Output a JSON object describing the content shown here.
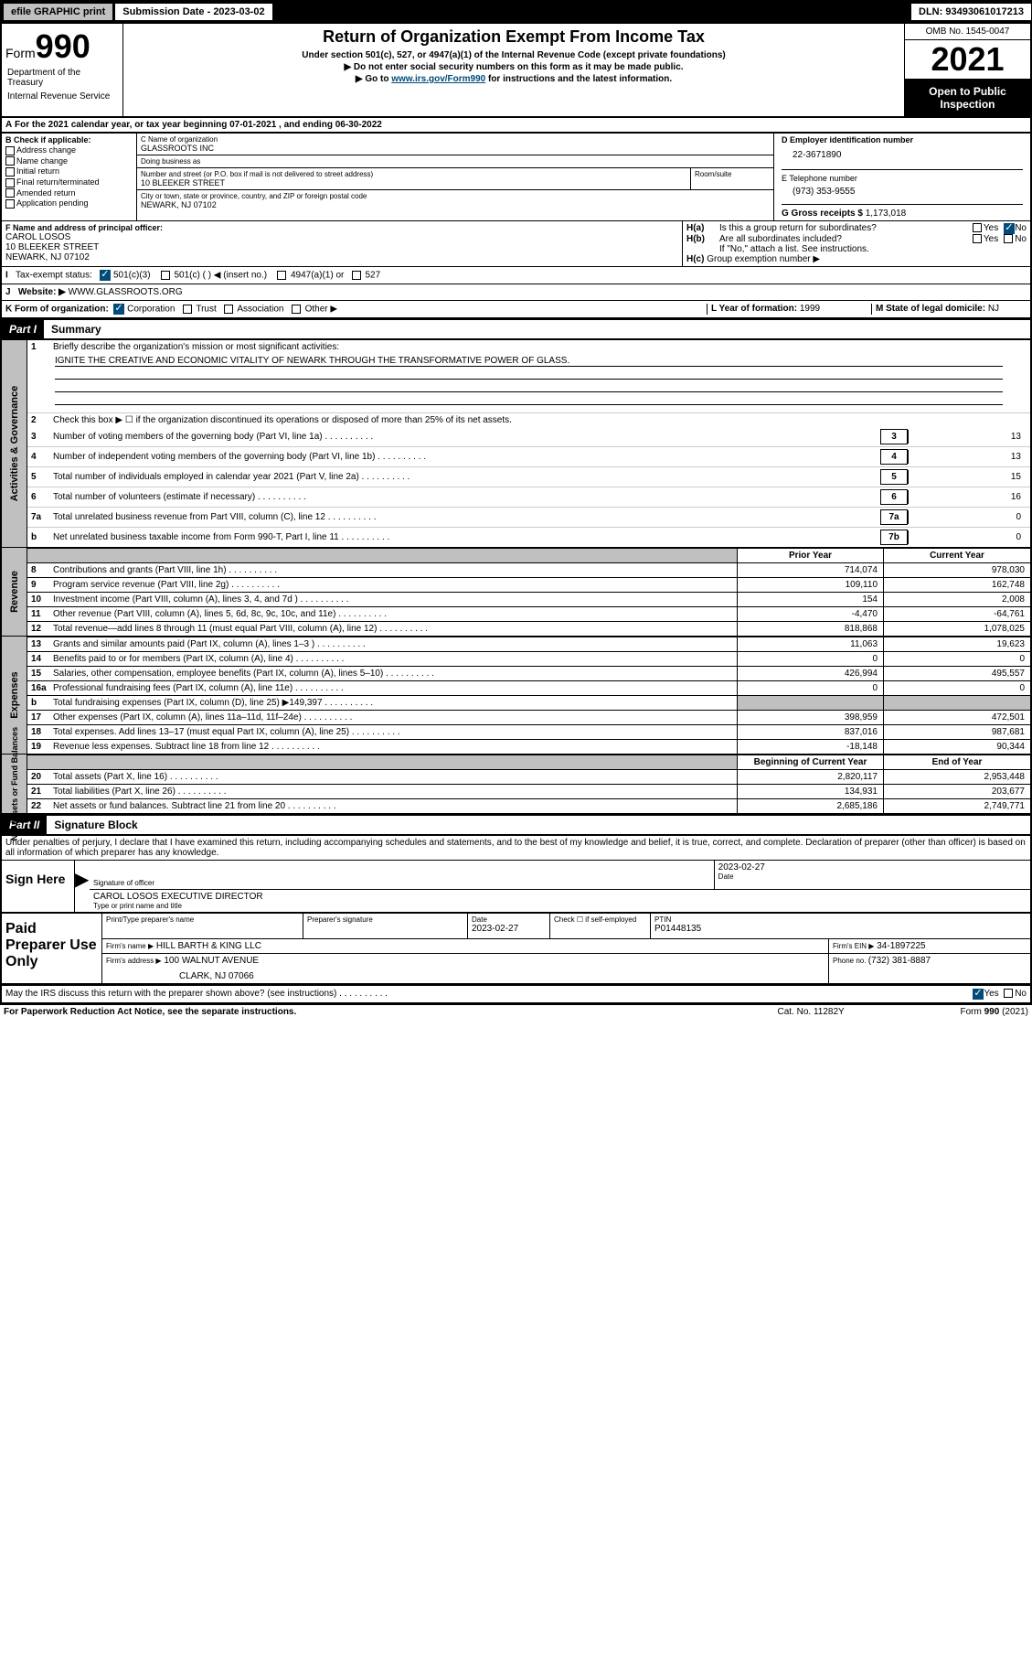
{
  "topbar": {
    "efile": "efile GRAPHIC print",
    "submission_label": "Submission Date - 2023-03-02",
    "dln": "DLN: 93493061017213"
  },
  "header": {
    "form_label": "Form",
    "form_num": "990",
    "title": "Return of Organization Exempt From Income Tax",
    "sub1": "Under section 501(c), 527, or 4947(a)(1) of the Internal Revenue Code (except private foundations)",
    "sub2": "▶ Do not enter social security numbers on this form as it may be made public.",
    "sub3_pre": "▶ Go to ",
    "sub3_link": "www.irs.gov/Form990",
    "sub3_post": " for instructions and the latest information.",
    "omb": "OMB No. 1545-0047",
    "year": "2021",
    "open": "Open to Public Inspection",
    "dept": "Department of the Treasury",
    "irs": "Internal Revenue Service"
  },
  "rowA": "For the 2021 calendar year, or tax year beginning 07-01-2021  , and ending 06-30-2022",
  "sectionB": {
    "label": "B Check if applicable:",
    "opts": [
      "Address change",
      "Name change",
      "Initial return",
      "Final return/terminated",
      "Amended return",
      "Application pending"
    ]
  },
  "sectionC": {
    "name_label": "C Name of organization",
    "name": "GLASSROOTS INC",
    "dba_label": "Doing business as",
    "dba": "",
    "addr_label": "Number and street (or P.O. box if mail is not delivered to street address)",
    "room_label": "Room/suite",
    "addr": "10 BLEEKER STREET",
    "city_label": "City or town, state or province, country, and ZIP or foreign postal code",
    "city": "NEWARK, NJ  07102"
  },
  "sectionD": {
    "label": "D Employer identification number",
    "val": "22-3671890"
  },
  "sectionE": {
    "label": "E Telephone number",
    "val": "(973) 353-9555"
  },
  "sectionG": {
    "label": "G Gross receipts $ ",
    "val": "1,173,018"
  },
  "sectionF": {
    "label": "F Name and address of principal officer:",
    "name": "CAROL LOSOS",
    "addr1": "10 BLEEKER STREET",
    "addr2": "NEWARK, NJ  07102"
  },
  "sectionH": {
    "a": "Is this a group return for subordinates?",
    "b": "Are all subordinates included?",
    "b_note": "If \"No,\" attach a list. See instructions.",
    "c": "Group exemption number ▶"
  },
  "taxExempt": {
    "label": "Tax-exempt status:",
    "opt1": "501(c)(3)",
    "opt2": "501(c) (  ) ◀ (insert no.)",
    "opt3": "4947(a)(1) or",
    "opt4": "527"
  },
  "website": {
    "label": "Website: ▶",
    "val": "WWW.GLASSROOTS.ORG"
  },
  "orgForm": {
    "label": "K Form of organization:",
    "opts": [
      "Corporation",
      "Trust",
      "Association",
      "Other ▶"
    ]
  },
  "yearFormation": {
    "label": "L Year of formation: ",
    "val": "1999"
  },
  "domicile": {
    "label": "M State of legal domicile: ",
    "val": "NJ"
  },
  "part1": {
    "label": "Part I",
    "title": "Summary"
  },
  "summary": {
    "q1": "Briefly describe the organization's mission or most significant activities:",
    "mission": "IGNITE THE CREATIVE AND ECONOMIC VITALITY OF NEWARK THROUGH THE TRANSFORMATIVE POWER OF GLASS.",
    "q2": "Check this box ▶ ☐ if the organization discontinued its operations or disposed of more than 25% of its net assets.",
    "lines": [
      {
        "n": "3",
        "t": "Number of voting members of the governing body (Part VI, line 1a)",
        "box": "3",
        "v": "13"
      },
      {
        "n": "4",
        "t": "Number of independent voting members of the governing body (Part VI, line 1b)",
        "box": "4",
        "v": "13"
      },
      {
        "n": "5",
        "t": "Total number of individuals employed in calendar year 2021 (Part V, line 2a)",
        "box": "5",
        "v": "15"
      },
      {
        "n": "6",
        "t": "Total number of volunteers (estimate if necessary)",
        "box": "6",
        "v": "16"
      },
      {
        "n": "7a",
        "t": "Total unrelated business revenue from Part VIII, column (C), line 12",
        "box": "7a",
        "v": "0"
      },
      {
        "n": "b",
        "t": "Net unrelated business taxable income from Form 990-T, Part I, line 11",
        "box": "7b",
        "v": "0"
      }
    ],
    "prior_label": "Prior Year",
    "current_label": "Current Year",
    "beg_label": "Beginning of Current Year",
    "end_label": "End of Year"
  },
  "revenue": [
    {
      "n": "8",
      "t": "Contributions and grants (Part VIII, line 1h)",
      "p": "714,074",
      "c": "978,030"
    },
    {
      "n": "9",
      "t": "Program service revenue (Part VIII, line 2g)",
      "p": "109,110",
      "c": "162,748"
    },
    {
      "n": "10",
      "t": "Investment income (Part VIII, column (A), lines 3, 4, and 7d )",
      "p": "154",
      "c": "2,008"
    },
    {
      "n": "11",
      "t": "Other revenue (Part VIII, column (A), lines 5, 6d, 8c, 9c, 10c, and 11e)",
      "p": "-4,470",
      "c": "-64,761"
    },
    {
      "n": "12",
      "t": "Total revenue—add lines 8 through 11 (must equal Part VIII, column (A), line 12)",
      "p": "818,868",
      "c": "1,078,025"
    }
  ],
  "expenses": [
    {
      "n": "13",
      "t": "Grants and similar amounts paid (Part IX, column (A), lines 1–3 )",
      "p": "11,063",
      "c": "19,623"
    },
    {
      "n": "14",
      "t": "Benefits paid to or for members (Part IX, column (A), line 4)",
      "p": "0",
      "c": "0"
    },
    {
      "n": "15",
      "t": "Salaries, other compensation, employee benefits (Part IX, column (A), lines 5–10)",
      "p": "426,994",
      "c": "495,557"
    },
    {
      "n": "16a",
      "t": "Professional fundraising fees (Part IX, column (A), line 11e)",
      "p": "0",
      "c": "0"
    },
    {
      "n": "b",
      "t": "Total fundraising expenses (Part IX, column (D), line 25) ▶149,397",
      "p": "",
      "c": "",
      "shaded": true
    },
    {
      "n": "17",
      "t": "Other expenses (Part IX, column (A), lines 11a–11d, 11f–24e)",
      "p": "398,959",
      "c": "472,501"
    },
    {
      "n": "18",
      "t": "Total expenses. Add lines 13–17 (must equal Part IX, column (A), line 25)",
      "p": "837,016",
      "c": "987,681"
    },
    {
      "n": "19",
      "t": "Revenue less expenses. Subtract line 18 from line 12",
      "p": "-18,148",
      "c": "90,344"
    }
  ],
  "netassets": [
    {
      "n": "20",
      "t": "Total assets (Part X, line 16)",
      "p": "2,820,117",
      "c": "2,953,448"
    },
    {
      "n": "21",
      "t": "Total liabilities (Part X, line 26)",
      "p": "134,931",
      "c": "203,677"
    },
    {
      "n": "22",
      "t": "Net assets or fund balances. Subtract line 21 from line 20",
      "p": "2,685,186",
      "c": "2,749,771"
    }
  ],
  "part2": {
    "label": "Part II",
    "title": "Signature Block"
  },
  "sig": {
    "declaration": "Under penalties of perjury, I declare that I have examined this return, including accompanying schedules and statements, and to the best of my knowledge and belief, it is true, correct, and complete. Declaration of preparer (other than officer) is based on all information of which preparer has any knowledge.",
    "sign_here": "Sign Here",
    "officer_label": "Signature of officer",
    "date_label": "Date",
    "date": "2023-02-27",
    "name": "CAROL LOSOS  EXECUTIVE DIRECTOR",
    "name_label": "Type or print name and title"
  },
  "paid": {
    "title": "Paid Preparer Use Only",
    "preparer_name_label": "Print/Type preparer's name",
    "preparer_sig_label": "Preparer's signature",
    "date_label": "Date",
    "date": "2023-02-27",
    "check_label": "Check ☐ if self-employed",
    "ptin_label": "PTIN",
    "ptin": "P01448135",
    "firm_name_label": "Firm's name    ▶",
    "firm_name": "HILL BARTH & KING LLC",
    "firm_ein_label": "Firm's EIN ▶",
    "firm_ein": "34-1897225",
    "firm_addr_label": "Firm's address ▶",
    "firm_addr1": "100 WALNUT AVENUE",
    "firm_addr2": "CLARK, NJ  07066",
    "phone_label": "Phone no. ",
    "phone": "(732) 381-8887"
  },
  "discuss": "May the IRS discuss this return with the preparer shown above? (see instructions)",
  "footer": {
    "left": "For Paperwork Reduction Act Notice, see the separate instructions.",
    "cat": "Cat. No. 11282Y",
    "form": "Form 990 (2021)"
  },
  "labels": {
    "activities": "Activities & Governance",
    "revenue": "Revenue",
    "expenses": "Expenses",
    "netassets": "Net Assets or Fund Balances",
    "yes": "Yes",
    "no": "No",
    "ha": "H(a)",
    "hb": "H(b)",
    "hc": "H(c)",
    "i": "I",
    "j": "J",
    "a": "A",
    "one": "1",
    "two": "2"
  }
}
